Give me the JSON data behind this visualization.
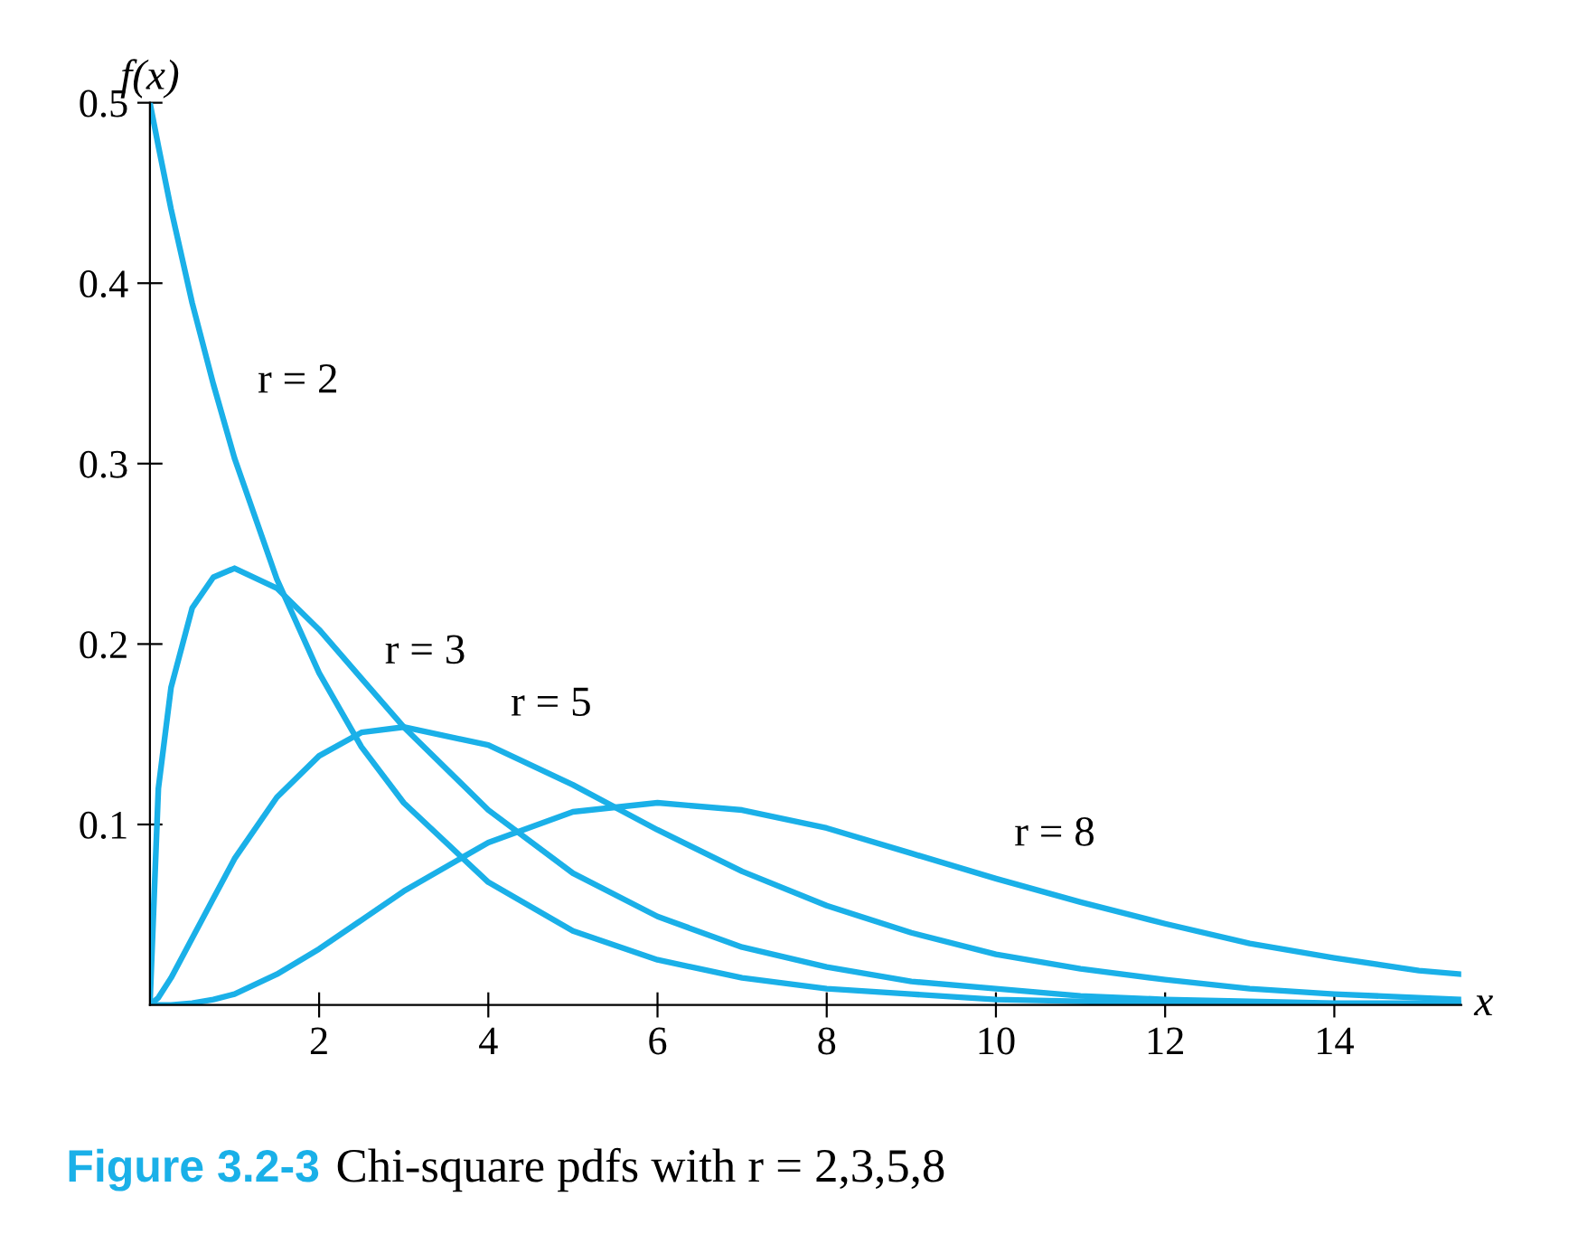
{
  "chart_data": {
    "type": "line",
    "title": "Figure 3.2-3",
    "subtitle": "Chi-square pdfs with r = 2,3,5,8",
    "xlabel": "x",
    "ylabel": "f(x)",
    "x": [
      0,
      0.1,
      0.25,
      0.5,
      0.75,
      1,
      1.5,
      2,
      2.5,
      3,
      4,
      5,
      6,
      7,
      8,
      9,
      10,
      11,
      12,
      13,
      14,
      15,
      15.5
    ],
    "series": [
      {
        "name": "r = 2",
        "color": "#1ab0e8",
        "values": [
          0.5,
          0.476,
          0.441,
          0.389,
          0.344,
          0.303,
          0.236,
          0.184,
          0.143,
          0.112,
          0.068,
          0.041,
          0.025,
          0.015,
          0.009,
          0.006,
          0.003,
          0.002,
          0.001,
          0.001,
          0.0,
          0.0,
          0.0
        ]
      },
      {
        "name": "r = 3",
        "color": "#1ab0e8",
        "values": [
          0,
          0.12,
          0.176,
          0.22,
          0.237,
          0.242,
          0.231,
          0.208,
          0.181,
          0.154,
          0.108,
          0.073,
          0.049,
          0.032,
          0.021,
          0.013,
          0.009,
          0.005,
          0.003,
          0.002,
          0.001,
          0.001,
          0.001
        ]
      },
      {
        "name": "r = 5",
        "color": "#1ab0e8",
        "values": [
          0,
          0.004,
          0.015,
          0.037,
          0.059,
          0.081,
          0.115,
          0.138,
          0.151,
          0.154,
          0.144,
          0.122,
          0.097,
          0.074,
          0.055,
          0.04,
          0.028,
          0.02,
          0.014,
          0.009,
          0.006,
          0.004,
          0.003
        ]
      },
      {
        "name": "r = 8",
        "color": "#1ab0e8",
        "values": [
          0,
          0.0,
          0.0,
          0.001,
          0.003,
          0.006,
          0.017,
          0.031,
          0.047,
          0.063,
          0.09,
          0.107,
          0.112,
          0.108,
          0.098,
          0.084,
          0.07,
          0.057,
          0.045,
          0.034,
          0.026,
          0.019,
          0.017
        ]
      }
    ],
    "xlim": [
      0,
      15.5
    ],
    "ylim": [
      0,
      0.5
    ],
    "xticks": [
      2,
      4,
      6,
      8,
      10,
      12,
      14
    ],
    "yticks": [
      0.1,
      0.2,
      0.3,
      0.4,
      0.5
    ],
    "grid": false,
    "legend": false,
    "marker": "none",
    "line_style": "solid"
  }
}
